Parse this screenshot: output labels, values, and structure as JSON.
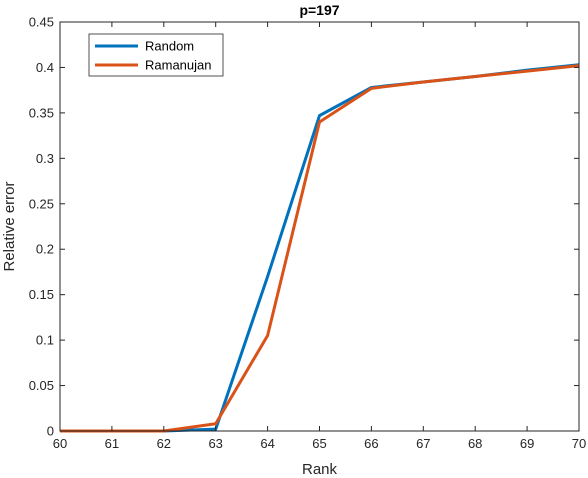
{
  "chart_data": {
    "type": "line",
    "title": "p=197",
    "xlabel": "Rank",
    "ylabel": "Relative error",
    "xlim": [
      60,
      70
    ],
    "ylim": [
      0,
      0.45
    ],
    "xticks": [
      60,
      61,
      62,
      63,
      64,
      65,
      66,
      67,
      68,
      69,
      70
    ],
    "xtick_labels": [
      "60",
      "61",
      "62",
      "63",
      "64",
      "65",
      "66",
      "67",
      "68",
      "69",
      "70"
    ],
    "yticks": [
      0,
      0.05,
      0.1,
      0.15,
      0.2,
      0.25,
      0.3,
      0.35,
      0.4,
      0.45
    ],
    "ytick_labels": [
      "0",
      "0.05",
      "0.1",
      "0.15",
      "0.2",
      "0.25",
      "0.3",
      "0.35",
      "0.4",
      "0.45"
    ],
    "grid": false,
    "legend_position": "top-left",
    "x": [
      60,
      61,
      62,
      63,
      64,
      65,
      66,
      67,
      68,
      69,
      70
    ],
    "series": [
      {
        "name": "Random",
        "color": "#0072BD",
        "values": [
          0.0,
          0.0,
          0.0,
          0.002,
          0.17,
          0.347,
          0.378,
          0.384,
          0.39,
          0.397,
          0.403
        ]
      },
      {
        "name": "Ramanujan",
        "color": "#D95319",
        "values": [
          0.0,
          0.0,
          0.0,
          0.008,
          0.105,
          0.34,
          0.377,
          0.384,
          0.39,
          0.396,
          0.402
        ]
      }
    ]
  }
}
